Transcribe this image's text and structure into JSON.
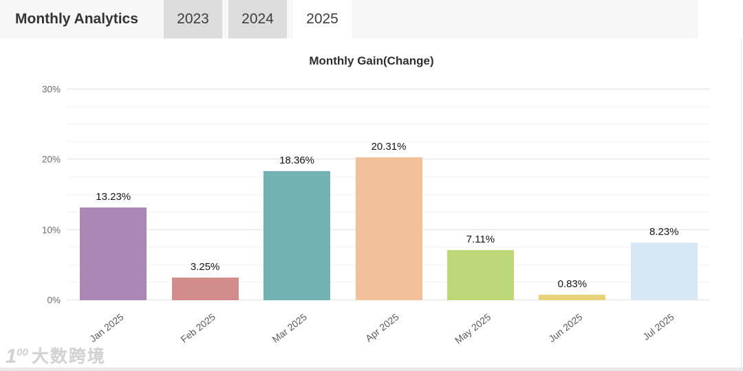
{
  "header": {
    "title": "Monthly Analytics",
    "tabs": [
      {
        "label": "2023",
        "active": false
      },
      {
        "label": "2024",
        "active": false
      },
      {
        "label": "2025",
        "active": true
      }
    ]
  },
  "chart_data": {
    "type": "bar",
    "title": "Monthly Gain(Change)",
    "categories": [
      "Jan 2025",
      "Feb 2025",
      "Mar 2025",
      "Apr 2025",
      "May 2025",
      "Jun 2025",
      "Jul 2025"
    ],
    "values": [
      13.23,
      3.25,
      18.36,
      20.31,
      7.11,
      0.83,
      8.23
    ],
    "value_labels": [
      "13.23%",
      "3.25%",
      "18.36%",
      "20.31%",
      "7.11%",
      "0.83%",
      "8.23%"
    ],
    "bar_colors": [
      "#ab87b5",
      "#d28c8c",
      "#72b2b2",
      "#f2c19c",
      "#bcd878",
      "#e8d27a",
      "#d7e7f6"
    ],
    "xlabel": "",
    "ylabel": "",
    "ylim": [
      0,
      30
    ],
    "y_ticks": [
      "0%",
      "10%",
      "20%",
      "30%"
    ],
    "y_tick_values": [
      0,
      10,
      20,
      30
    ],
    "minor_grid_step": 2.5,
    "grid": true,
    "legend_position": "none"
  },
  "watermark": {
    "logo_main": "1",
    "logo_sup": "00",
    "text": "大数跨境"
  },
  "colors": {
    "header_bg": "#f7f7f7",
    "tab_bg": "#dcdcdc",
    "tab_active_bg": "#ffffff",
    "major_grid": "#e2e2e2",
    "minor_grid": "#f3f3f3",
    "axis_text": "#6b6b6b"
  }
}
